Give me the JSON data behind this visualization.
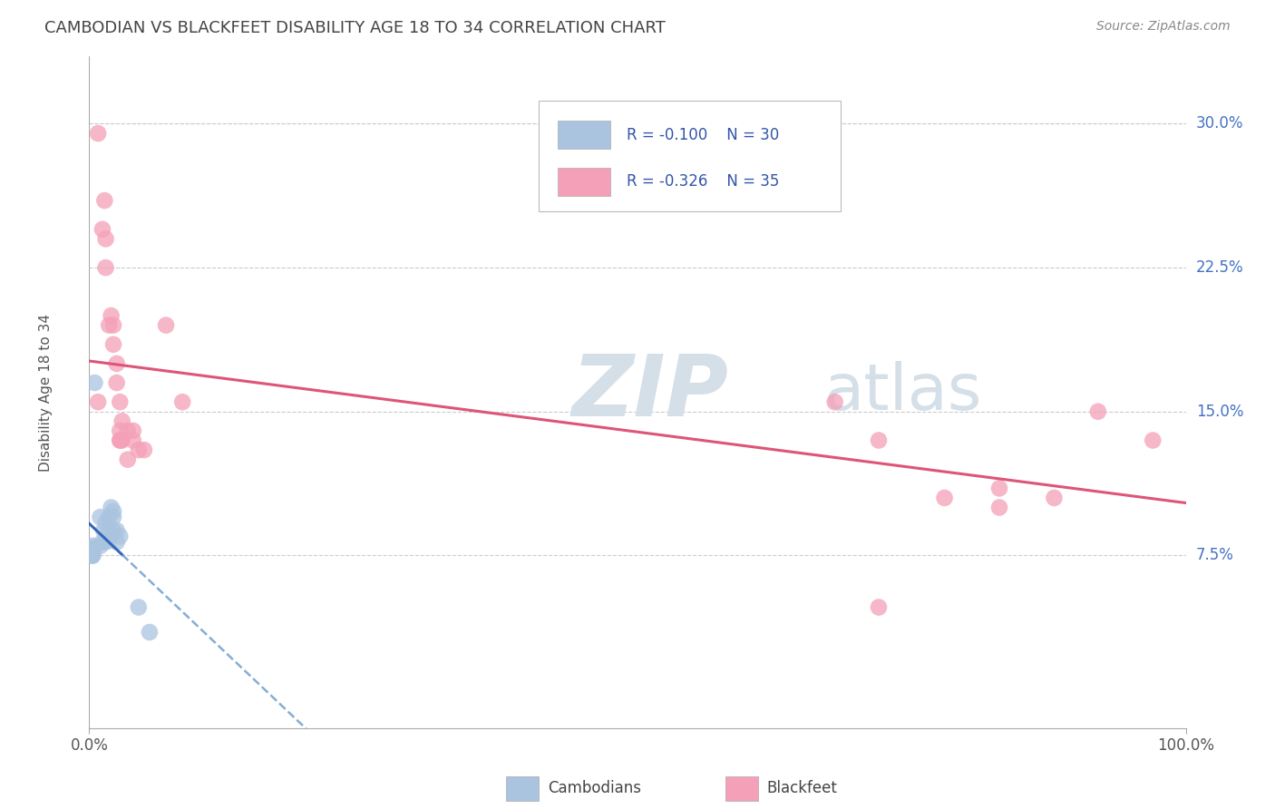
{
  "title": "CAMBODIAN VS BLACKFEET DISABILITY AGE 18 TO 34 CORRELATION CHART",
  "source": "Source: ZipAtlas.com",
  "ylabel": "Disability Age 18 to 34",
  "yticks": [
    "7.5%",
    "15.0%",
    "22.5%",
    "30.0%"
  ],
  "ytick_vals": [
    0.075,
    0.15,
    0.225,
    0.3
  ],
  "xlim": [
    0.0,
    1.0
  ],
  "ylim": [
    -0.015,
    0.335
  ],
  "legend_cambodian": {
    "R": "-0.100",
    "N": "30"
  },
  "legend_blackfeet": {
    "R": "-0.326",
    "N": "35"
  },
  "cambodian_color": "#aac4e0",
  "blackfeet_color": "#f4a0b8",
  "trendline_cambodian_solid_color": "#3366bb",
  "trendline_cambodian_dash_color": "#6699cc",
  "trendline_blackfeet_color": "#dd5577",
  "watermark_zip": "ZIP",
  "watermark_atlas": "atlas",
  "watermark_color": "#d4dfe8",
  "background_color": "#ffffff",
  "cambodian_points": [
    [
      0.005,
      0.165
    ],
    [
      0.01,
      0.08
    ],
    [
      0.01,
      0.095
    ],
    [
      0.012,
      0.082
    ],
    [
      0.013,
      0.088
    ],
    [
      0.015,
      0.082
    ],
    [
      0.015,
      0.092
    ],
    [
      0.018,
      0.095
    ],
    [
      0.018,
      0.088
    ],
    [
      0.018,
      0.083
    ],
    [
      0.02,
      0.1
    ],
    [
      0.022,
      0.095
    ],
    [
      0.022,
      0.098
    ],
    [
      0.022,
      0.088
    ],
    [
      0.025,
      0.088
    ],
    [
      0.025,
      0.082
    ],
    [
      0.028,
      0.085
    ],
    [
      0.003,
      0.075
    ],
    [
      0.003,
      0.077
    ],
    [
      0.003,
      0.078
    ],
    [
      0.003,
      0.079
    ],
    [
      0.003,
      0.08
    ],
    [
      0.003,
      0.075
    ],
    [
      0.003,
      0.076
    ],
    [
      0.003,
      0.075
    ],
    [
      0.003,
      0.076
    ],
    [
      0.003,
      0.077
    ],
    [
      0.003,
      0.078
    ],
    [
      0.045,
      0.048
    ],
    [
      0.055,
      0.035
    ]
  ],
  "blackfeet_points": [
    [
      0.008,
      0.295
    ],
    [
      0.012,
      0.245
    ],
    [
      0.014,
      0.26
    ],
    [
      0.015,
      0.24
    ],
    [
      0.015,
      0.225
    ],
    [
      0.018,
      0.195
    ],
    [
      0.02,
      0.2
    ],
    [
      0.022,
      0.185
    ],
    [
      0.022,
      0.195
    ],
    [
      0.025,
      0.175
    ],
    [
      0.025,
      0.165
    ],
    [
      0.028,
      0.155
    ],
    [
      0.028,
      0.14
    ],
    [
      0.028,
      0.135
    ],
    [
      0.028,
      0.135
    ],
    [
      0.03,
      0.145
    ],
    [
      0.03,
      0.135
    ],
    [
      0.035,
      0.14
    ],
    [
      0.035,
      0.125
    ],
    [
      0.04,
      0.14
    ],
    [
      0.04,
      0.135
    ],
    [
      0.045,
      0.13
    ],
    [
      0.05,
      0.13
    ],
    [
      0.07,
      0.195
    ],
    [
      0.085,
      0.155
    ],
    [
      0.008,
      0.155
    ],
    [
      0.68,
      0.155
    ],
    [
      0.72,
      0.135
    ],
    [
      0.78,
      0.105
    ],
    [
      0.83,
      0.11
    ],
    [
      0.83,
      0.1
    ],
    [
      0.88,
      0.105
    ],
    [
      0.92,
      0.15
    ],
    [
      0.97,
      0.135
    ],
    [
      0.72,
      0.048
    ]
  ]
}
